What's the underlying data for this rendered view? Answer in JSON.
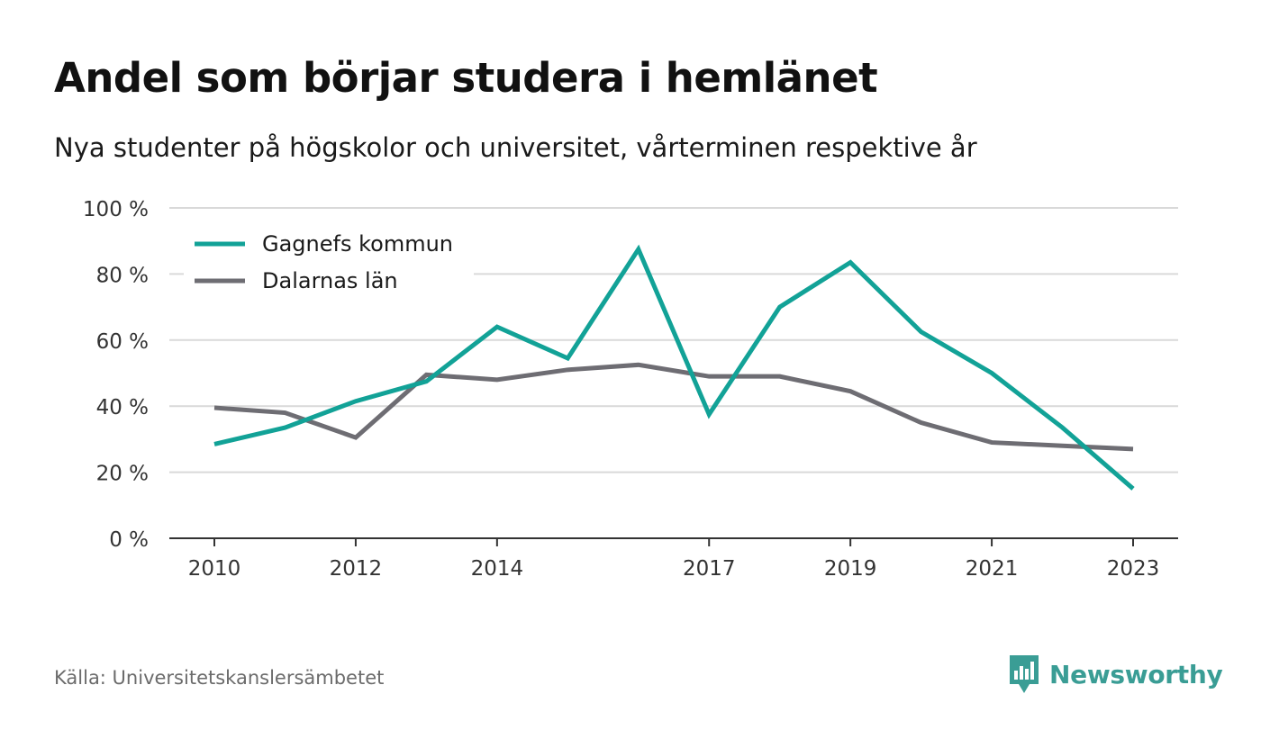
{
  "title": "Andel som börjar studera i hemlänet",
  "subtitle": "Nya studenter på högskolor och universitet, vårterminen respektive år",
  "source": "Källa: Universitetskanslersämbetet",
  "brand": "Newsworthy",
  "colors": {
    "gagnef": "#12a297",
    "dalarna": "#6e6d73",
    "grid": "#d9d9d9",
    "axis": "#333333",
    "brand": "#3a9d95"
  },
  "chart_data": {
    "type": "line",
    "x": [
      2010,
      2011,
      2012,
      2013,
      2014,
      2015,
      2016,
      2017,
      2018,
      2019,
      2020,
      2021,
      2022,
      2023
    ],
    "xticks": [
      2010,
      2012,
      2014,
      2017,
      2019,
      2021,
      2023
    ],
    "yticks": [
      0,
      20,
      40,
      60,
      80,
      100
    ],
    "ytick_labels": [
      "0 %",
      "20 %",
      "40 %",
      "60 %",
      "80 %",
      "100 %"
    ],
    "ylim": [
      0,
      100
    ],
    "xlim": [
      2010,
      2023
    ],
    "grid": true,
    "legend": "top-left",
    "series": [
      {
        "name": "Gagnefs kommun",
        "color": "#12a297",
        "values": [
          28.5,
          33.5,
          41.5,
          47.5,
          64,
          54.5,
          87.5,
          37.5,
          70,
          83.5,
          62.5,
          50,
          33.5,
          15
        ]
      },
      {
        "name": "Dalarnas län",
        "color": "#6e6d73",
        "values": [
          39.5,
          38,
          30.5,
          49.5,
          48,
          51,
          52.5,
          49,
          49,
          44.5,
          35,
          29,
          28,
          27
        ]
      }
    ]
  }
}
